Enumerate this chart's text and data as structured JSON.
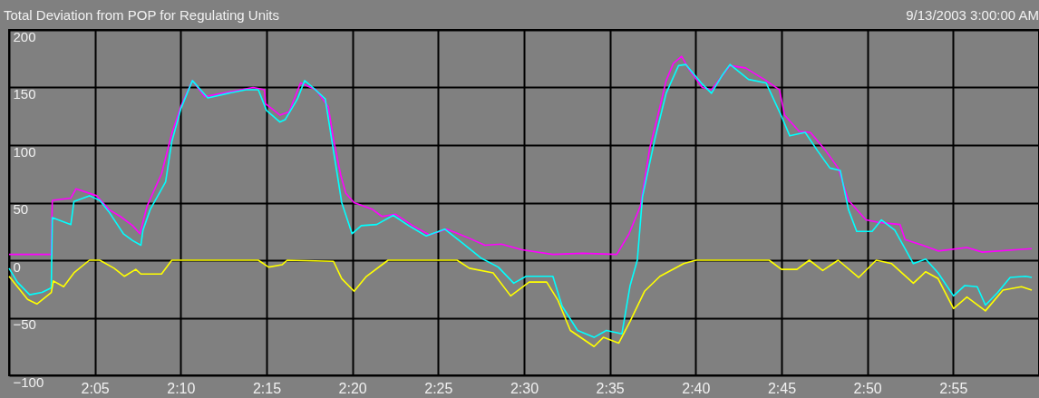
{
  "chart_data": {
    "type": "line",
    "title": "Total Deviation from POP for Regulating Units",
    "annotations": [
      "9/13/2003 3:00:00 AM"
    ],
    "xlim": [
      2.0,
      3.0
    ],
    "xticks": [
      {
        "value": 2.0,
        "label": null
      },
      {
        "value": 2.08333,
        "label": "2:05"
      },
      {
        "value": 2.16667,
        "label": "2:10"
      },
      {
        "value": 2.25,
        "label": "2:15"
      },
      {
        "value": 2.33333,
        "label": "2:20"
      },
      {
        "value": 2.41667,
        "label": "2:25"
      },
      {
        "value": 2.5,
        "label": "2:30"
      },
      {
        "value": 2.58333,
        "label": "2:35"
      },
      {
        "value": 2.66667,
        "label": "2:40"
      },
      {
        "value": 2.75,
        "label": "2:45"
      },
      {
        "value": 2.83333,
        "label": "2:50"
      },
      {
        "value": 2.91667,
        "label": "2:55"
      },
      {
        "value": 3.0,
        "label": null
      }
    ],
    "ylim": [
      -100,
      200
    ],
    "yticks": [
      -100,
      -50,
      0,
      50,
      100,
      150,
      200
    ],
    "grid": true,
    "legend": false,
    "marker": "none",
    "line_style": "solid",
    "series": [
      {
        "color": "#ff00ff",
        "x": [
          2.0,
          2.041,
          2.042,
          2.06,
          2.065,
          2.085,
          2.097,
          2.108,
          2.12,
          2.127,
          2.134,
          2.148,
          2.158,
          2.167,
          2.178,
          2.19,
          2.213,
          2.237,
          2.248,
          2.249,
          2.263,
          2.272,
          2.283,
          2.298,
          2.31,
          2.315,
          2.322,
          2.327,
          2.335,
          2.353,
          2.362,
          2.375,
          2.392,
          2.408,
          2.425,
          2.447,
          2.462,
          2.478,
          2.498,
          2.528,
          2.557,
          2.59,
          2.602,
          2.613,
          2.622,
          2.63,
          2.638,
          2.645,
          2.653,
          2.66,
          2.673,
          2.682,
          2.7,
          2.715,
          2.735,
          2.748,
          2.753,
          2.767,
          2.778,
          2.793,
          2.805,
          2.815,
          2.832,
          2.843,
          2.865,
          2.87,
          2.887,
          2.902,
          2.93,
          2.945,
          2.977,
          2.993
        ],
        "values": [
          5,
          5,
          52,
          54,
          62,
          56,
          44,
          38,
          30,
          23,
          47,
          75,
          110,
          134,
          156,
          142,
          146,
          150,
          148,
          136,
          126,
          129,
          154,
          148,
          133,
          105,
          74,
          58,
          50,
          44,
          38,
          40,
          30,
          22,
          27,
          19,
          13,
          14,
          9,
          5,
          6,
          5,
          23,
          47,
          97,
          126,
          156,
          171,
          177,
          166,
          150,
          148,
          169,
          167,
          156,
          148,
          126,
          112,
          111,
          95,
          80,
          52,
          35,
          33,
          31,
          18,
          13,
          8,
          11,
          7,
          9,
          10
        ]
      },
      {
        "color": "#00ffff",
        "x": [
          2.0,
          2.008,
          2.02,
          2.032,
          2.041,
          2.042,
          2.06,
          2.063,
          2.078,
          2.088,
          2.097,
          2.111,
          2.12,
          2.128,
          2.13,
          2.137,
          2.152,
          2.158,
          2.167,
          2.178,
          2.193,
          2.213,
          2.23,
          2.242,
          2.25,
          2.263,
          2.268,
          2.28,
          2.287,
          2.295,
          2.307,
          2.315,
          2.323,
          2.333,
          2.342,
          2.357,
          2.373,
          2.388,
          2.405,
          2.423,
          2.44,
          2.458,
          2.475,
          2.49,
          2.502,
          2.528,
          2.537,
          2.552,
          2.568,
          2.58,
          2.595,
          2.603,
          2.61,
          2.615,
          2.627,
          2.638,
          2.65,
          2.657,
          2.673,
          2.682,
          2.692,
          2.7,
          2.718,
          2.735,
          2.75,
          2.758,
          2.773,
          2.785,
          2.797,
          2.807,
          2.815,
          2.823,
          2.838,
          2.847,
          2.86,
          2.87,
          2.878,
          2.89,
          2.902,
          2.917,
          2.928,
          2.94,
          2.948,
          2.96,
          2.972,
          2.987,
          2.993
        ],
        "values": [
          -7,
          -19,
          -30,
          -28,
          -24,
          37,
          31,
          51,
          56,
          52,
          42,
          23,
          17,
          13,
          26,
          44,
          68,
          103,
          132,
          156,
          141,
          145,
          148,
          148,
          130,
          120,
          122,
          140,
          156,
          150,
          140,
          95,
          50,
          23,
          30,
          31,
          39,
          30,
          21,
          27,
          15,
          2,
          -6,
          -20,
          -14,
          -14,
          -40,
          -61,
          -67,
          -61,
          -64,
          -22,
          0,
          55,
          105,
          145,
          169,
          170,
          153,
          145,
          160,
          170,
          157,
          154,
          125,
          108,
          111,
          95,
          80,
          78,
          44,
          25,
          25,
          35,
          26,
          10,
          -3,
          1,
          -11,
          -31,
          -22,
          -23,
          -39,
          -28,
          -15,
          -14,
          -15
        ]
      },
      {
        "color": "#ffff00",
        "x": [
          2.0,
          2.018,
          2.027,
          2.041,
          2.043,
          2.053,
          2.063,
          2.078,
          2.088,
          2.102,
          2.112,
          2.123,
          2.128,
          2.148,
          2.158,
          2.242,
          2.252,
          2.265,
          2.27,
          2.315,
          2.323,
          2.335,
          2.347,
          2.368,
          2.435,
          2.447,
          2.47,
          2.487,
          2.505,
          2.522,
          2.533,
          2.545,
          2.568,
          2.577,
          2.592,
          2.603,
          2.617,
          2.632,
          2.655,
          2.667,
          2.738,
          2.75,
          2.765,
          2.777,
          2.79,
          2.805,
          2.825,
          2.842,
          2.857,
          2.878,
          2.89,
          2.902,
          2.917,
          2.93,
          2.948,
          2.965,
          2.983,
          2.993
        ],
        "values": [
          -14,
          -34,
          -38,
          -28,
          -18,
          -23,
          -11,
          0,
          0,
          -7,
          -14,
          -8,
          -12,
          -12,
          0,
          0,
          -6,
          -4,
          0,
          -1,
          -16,
          -27,
          -14,
          0,
          0,
          -7,
          -11,
          -31,
          -19,
          -19,
          -35,
          -61,
          -75,
          -67,
          -72,
          -53,
          -27,
          -14,
          -3,
          0,
          0,
          -8,
          -8,
          0,
          -9,
          0,
          -15,
          0,
          -3,
          -20,
          -10,
          -16,
          -42,
          -32,
          -44,
          -26,
          -23,
          -26
        ]
      }
    ]
  }
}
